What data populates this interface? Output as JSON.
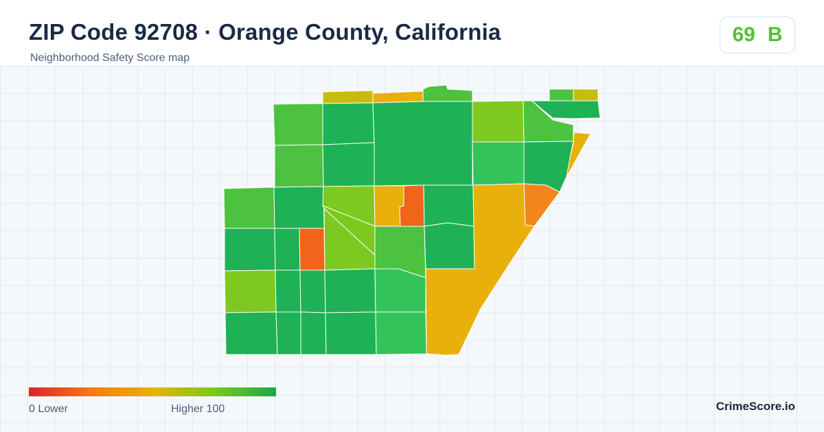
{
  "header": {
    "title": "ZIP Code 92708 · Orange County, California",
    "subtitle": "Neighborhood Safety Score map"
  },
  "score": {
    "value": "69",
    "grade": "B",
    "color": "#52c234"
  },
  "legend": {
    "low_label": "0  Lower",
    "high_label": "Higher  100",
    "scale_colors": [
      "#d62828",
      "#f07a1a",
      "#e8b20c",
      "#7cc820",
      "#1aa84a"
    ]
  },
  "brand": "CrimeScore.io",
  "map": {
    "tract_colors": {
      "dark_green": "#1fb155",
      "green": "#4cc240",
      "light_green": "#34c25a",
      "yellow_green": "#7ec91f",
      "olive": "#c8bb10",
      "amber": "#e9b00c",
      "orange": "#f2861b",
      "red_orange": "#f26419"
    }
  }
}
